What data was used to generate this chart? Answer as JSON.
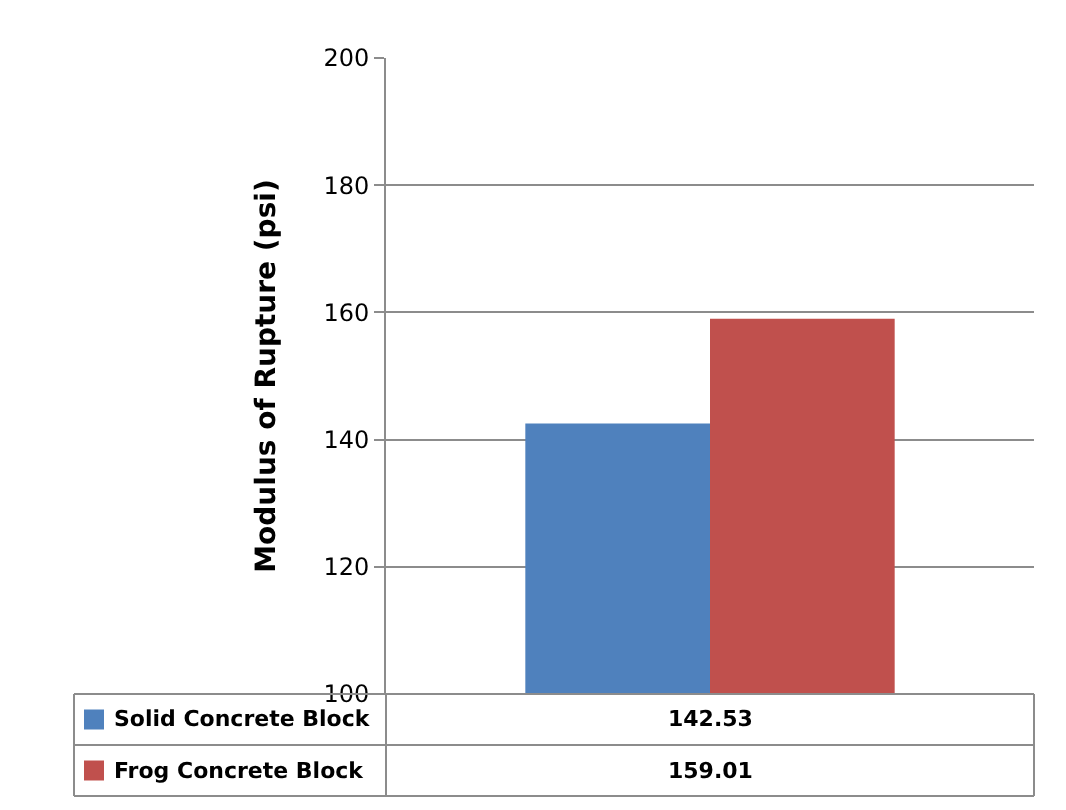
{
  "chart_data": {
    "type": "bar",
    "ylabel": "Modulus of Rupture (psi)",
    "categories": [
      null
    ],
    "series": [
      {
        "name": "Solid Concrete Block",
        "color": "#4f81bd",
        "values": [
          142.53
        ]
      },
      {
        "name": "Frog Concrete Block",
        "color": "#c0504d",
        "values": [
          159.01
        ]
      }
    ],
    "ylim": [
      100,
      200
    ],
    "yticks": [
      100,
      120,
      140,
      160,
      180,
      200
    ],
    "grid": "y",
    "legend": "bottom",
    "data_labels": true
  }
}
